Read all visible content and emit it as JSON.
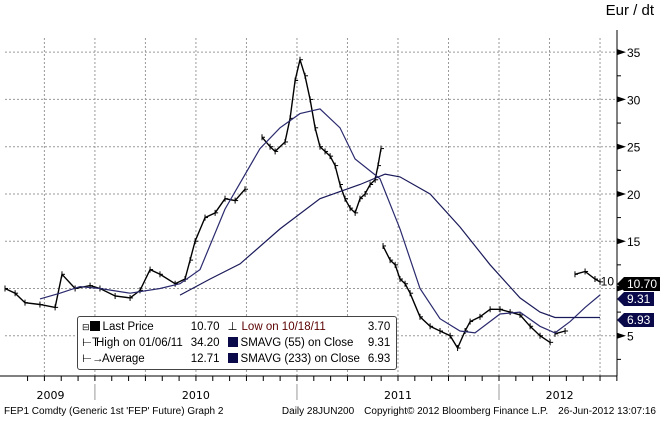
{
  "header": {
    "unit": "Eur / dt"
  },
  "footer": {
    "left": "FEP1 Comdty (Generic 1st 'FEP' Future) Graph 2",
    "middle": "Daily 28JUN200",
    "copyright": "Copyright© 2012 Bloomberg Finance L.P.",
    "timestamp": "26-Jun-2012 13:07:16"
  },
  "legend": {
    "last_price_label": "Last Price",
    "last_price_value": "10.70",
    "high_label": "High on 01/06/11",
    "high_value": "34.20",
    "average_label": "Average",
    "average_value": "12.71",
    "low_label": "Low on 10/18/11",
    "low_value": "3.70",
    "sma55_label": "SMAVG (55) on Close",
    "sma55_value": "9.31",
    "sma233_label": "SMAVG (233) on Close",
    "sma233_value": "6.93"
  },
  "tags": [
    {
      "value": "10.70",
      "color": "#000000"
    },
    {
      "value": "9.31",
      "color": "#0a0a4a"
    },
    {
      "value": "6.93",
      "color": "#0a0a4a"
    }
  ],
  "colors": {
    "price": "#000000",
    "sma55": "#2a2a6e",
    "sma233": "#1a1a5a",
    "grid": "#9a9a9a"
  },
  "chart_data": {
    "type": "line",
    "title": "",
    "ylabel": "Eur / dt",
    "xlim": [
      2009.555,
      2012.584
    ],
    "ylim": [
      0.74,
      36.5
    ],
    "yticks": [
      5,
      10,
      15,
      20,
      25,
      30,
      35
    ],
    "ytick_labels": [
      "5",
      "10",
      "15",
      "20",
      "25",
      "30",
      "35"
    ],
    "x_year_labels": [
      {
        "label": "2009",
        "center": 2009.78
      },
      {
        "label": "2010",
        "center": 2010.5
      },
      {
        "label": "2011",
        "center": 2011.5
      },
      {
        "label": "2012",
        "center": 2012.3
      }
    ],
    "year_dividers": [
      2010.0,
      2011.0,
      2012.0
    ],
    "grid": true,
    "legend_placement": "bottom-left",
    "series": [
      {
        "name": "Last Price",
        "points": [
          [
            2009.555,
            10
          ],
          [
            2009.605,
            9.5
          ],
          [
            2009.654,
            8.5
          ],
          [
            2009.728,
            8.3
          ],
          [
            2009.803,
            8
          ],
          [
            2009.837,
            11.5
          ],
          [
            2009.902,
            10
          ],
          [
            2009.976,
            10.3
          ],
          [
            2010.025,
            10
          ],
          [
            2010.1,
            9.2
          ],
          [
            2010.174,
            9
          ],
          [
            2010.223,
            9.8
          ],
          [
            2010.273,
            12
          ],
          [
            2010.322,
            11.5
          ],
          [
            2010.397,
            10.5
          ],
          [
            2010.446,
            11
          ],
          [
            2010.471,
            13
          ],
          [
            2010.496,
            15
          ],
          [
            2010.545,
            17.5
          ],
          [
            2010.595,
            18
          ],
          [
            2010.644,
            19.5
          ],
          [
            2010.694,
            19.3
          ],
          [
            2010.743,
            20.5
          ],
          null,
          [
            2010.827,
            26
          ],
          [
            2010.867,
            25
          ],
          [
            2010.892,
            24.5
          ],
          [
            2010.941,
            25.5
          ],
          [
            2010.966,
            28
          ],
          [
            2010.991,
            32
          ],
          [
            2011.015,
            34.2
          ],
          [
            2011.04,
            32.5
          ],
          [
            2011.065,
            30
          ],
          [
            2011.09,
            27
          ],
          [
            2011.114,
            25
          ],
          [
            2011.139,
            24.5
          ],
          [
            2011.164,
            24
          ],
          [
            2011.189,
            23
          ],
          [
            2011.213,
            21
          ],
          [
            2011.238,
            19.5
          ],
          [
            2011.263,
            18.5
          ],
          [
            2011.288,
            18
          ],
          [
            2011.312,
            19.5
          ],
          [
            2011.337,
            20
          ],
          [
            2011.362,
            21
          ],
          [
            2011.387,
            21.5
          ],
          [
            2011.401,
            23
          ],
          [
            2011.416,
            24.8
          ],
          null,
          [
            2011.426,
            14.5
          ],
          [
            2011.461,
            13
          ],
          [
            2011.486,
            12.5
          ],
          [
            2011.51,
            11
          ],
          [
            2011.535,
            10.5
          ],
          [
            2011.56,
            9.5
          ],
          [
            2011.609,
            7
          ],
          [
            2011.659,
            6
          ],
          [
            2011.708,
            5.5
          ],
          [
            2011.758,
            5
          ],
          [
            2011.795,
            3.7
          ],
          [
            2011.832,
            5.5
          ],
          [
            2011.857,
            6.5
          ],
          [
            2011.906,
            7
          ],
          [
            2011.956,
            7.8
          ],
          [
            2012.005,
            7.8
          ],
          [
            2012.055,
            7.5
          ],
          [
            2012.104,
            7.2
          ],
          [
            2012.154,
            6
          ],
          [
            2012.203,
            5
          ],
          [
            2012.253,
            4.3
          ],
          null,
          [
            2012.277,
            5.2
          ],
          [
            2012.327,
            5.5
          ],
          null,
          [
            2012.376,
            11.5
          ],
          [
            2012.426,
            11.8
          ],
          [
            2012.475,
            11
          ],
          [
            2012.5,
            10.7
          ]
        ]
      },
      {
        "name": "SMAVG (55) on Close",
        "points": [
          [
            2009.728,
            8.9
          ],
          [
            2009.827,
            9.5
          ],
          [
            2009.926,
            10.2
          ],
          [
            2010.025,
            10
          ],
          [
            2010.174,
            9.5
          ],
          [
            2010.322,
            10
          ],
          [
            2010.421,
            10.5
          ],
          [
            2010.52,
            12
          ],
          [
            2010.644,
            18.4
          ],
          [
            2010.817,
            24.8
          ],
          [
            2010.916,
            27
          ],
          [
            2011.015,
            28.5
          ],
          [
            2011.114,
            29
          ],
          [
            2011.213,
            27
          ],
          [
            2011.288,
            23.7
          ],
          [
            2011.411,
            21.6
          ],
          [
            2011.51,
            16.3
          ],
          [
            2011.609,
            10
          ],
          [
            2011.708,
            6.8
          ],
          [
            2011.807,
            5.5
          ],
          [
            2011.881,
            5.3
          ],
          [
            2012.005,
            7.3
          ],
          [
            2012.104,
            7.5
          ],
          [
            2012.203,
            6
          ],
          [
            2012.277,
            5.3
          ],
          [
            2012.352,
            6.5
          ],
          [
            2012.426,
            8
          ],
          [
            2012.5,
            9.31
          ]
        ]
      },
      {
        "name": "SMAVG (233) on Close",
        "points": [
          [
            2010.421,
            9.3
          ],
          [
            2010.57,
            11
          ],
          [
            2010.718,
            12.6
          ],
          [
            2010.916,
            16.3
          ],
          [
            2011.114,
            19.5
          ],
          [
            2011.312,
            21
          ],
          [
            2011.436,
            22.1
          ],
          [
            2011.51,
            21.8
          ],
          [
            2011.659,
            20
          ],
          [
            2011.807,
            16.5
          ],
          [
            2011.956,
            12.5
          ],
          [
            2012.104,
            9
          ],
          [
            2012.203,
            7.5
          ],
          [
            2012.277,
            6.93
          ],
          [
            2012.5,
            6.93
          ]
        ]
      }
    ]
  }
}
